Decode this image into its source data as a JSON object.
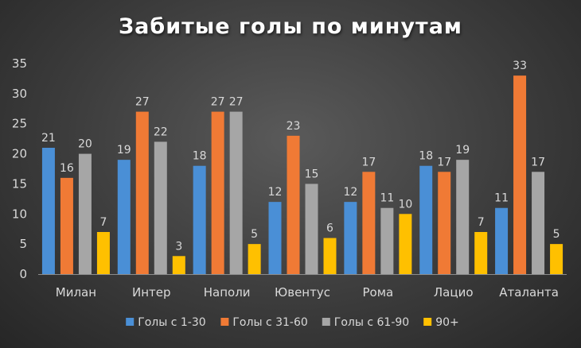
{
  "chart_data": {
    "type": "bar",
    "title": "Забитые голы по минутам",
    "categories": [
      "Милан",
      "Интер",
      "Наполи",
      "Ювентус",
      "Рома",
      "Лацио",
      "Аталанта"
    ],
    "series": [
      {
        "name": "Голы с 1-30",
        "color": "#4a8fd6",
        "values": [
          21,
          19,
          18,
          12,
          12,
          18,
          11
        ]
      },
      {
        "name": "Голы с 31-60",
        "color": "#f07a35",
        "values": [
          16,
          27,
          27,
          23,
          17,
          17,
          33
        ]
      },
      {
        "name": "Голы с 61-90",
        "color": "#a6a6a6",
        "values": [
          20,
          22,
          27,
          15,
          11,
          19,
          17
        ]
      },
      {
        "name": "90+",
        "color": "#ffc000",
        "values": [
          7,
          3,
          5,
          6,
          10,
          7,
          5
        ]
      }
    ],
    "ylim": [
      0,
      35
    ],
    "yticks": [
      0,
      5,
      10,
      15,
      20,
      25,
      30,
      35
    ],
    "grid": false,
    "legend": "bottom"
  }
}
